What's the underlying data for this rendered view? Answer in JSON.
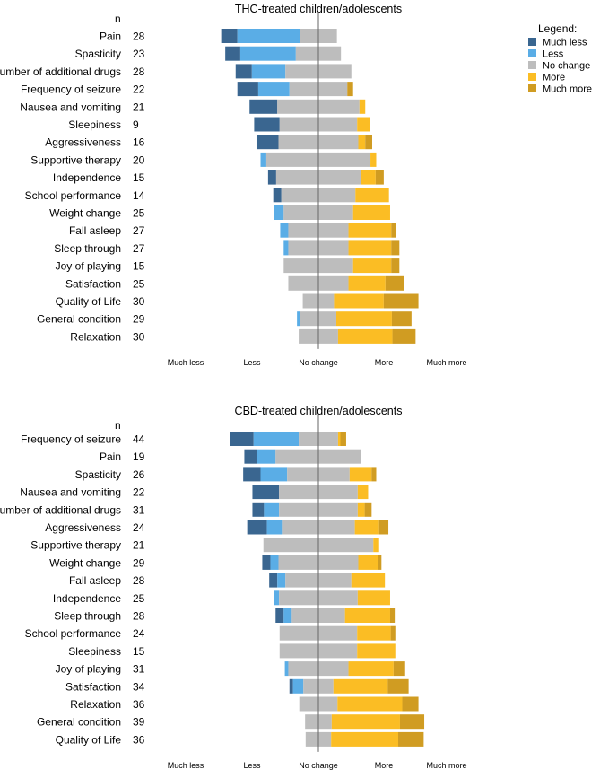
{
  "chart_data": [
    {
      "type": "bar",
      "subtype": "diverging-stacked-horizontal",
      "title": "THC-treated children/adolescents",
      "n_header": "n",
      "xtick_labels": [
        "Much less",
        "Less",
        "No change",
        "More",
        "Much more"
      ],
      "series": [
        {
          "name": "Much less",
          "color": "#3a6690"
        },
        {
          "name": "Less",
          "color": "#5aade6"
        },
        {
          "name": "No change",
          "color": "#bdbdbd"
        },
        {
          "name": "More",
          "color": "#fbbd24"
        },
        {
          "name": "Much more",
          "color": "#d09c22"
        }
      ],
      "categories": [
        {
          "label": "Pain",
          "n": "28",
          "values": [
            14,
            54,
            32,
            0,
            0
          ]
        },
        {
          "label": "Spasticity",
          "n": "23",
          "values": [
            13,
            48,
            39,
            0,
            0
          ]
        },
        {
          "label": "Number of additional drugs",
          "n": "28",
          "values": [
            14,
            29,
            57,
            0,
            0
          ]
        },
        {
          "label": "Frequency of seizure",
          "n": "22",
          "values": [
            18,
            27,
            50,
            0,
            5
          ]
        },
        {
          "label": "Nausea and vomiting",
          "n": "21",
          "values": [
            24,
            0,
            71,
            5,
            0
          ]
        },
        {
          "label": "Sleepiness",
          "n": "9",
          "values": [
            22,
            0,
            67,
            11,
            0
          ]
        },
        {
          "label": "Aggressiveness",
          "n": "16",
          "values": [
            19,
            0,
            69,
            6,
            6
          ]
        },
        {
          "label": "Supportive therapy",
          "n": "20",
          "values": [
            0,
            5,
            90,
            5,
            0
          ]
        },
        {
          "label": "Independence",
          "n": "15",
          "values": [
            7,
            0,
            73,
            13,
            7
          ]
        },
        {
          "label": "School performance",
          "n": "14",
          "values": [
            7,
            0,
            64,
            29,
            0
          ]
        },
        {
          "label": "Weight change",
          "n": "25",
          "values": [
            0,
            8,
            60,
            32,
            0
          ]
        },
        {
          "label": "Fall asleep",
          "n": "27",
          "values": [
            0,
            7,
            52,
            37,
            4
          ]
        },
        {
          "label": "Sleep through",
          "n": "27",
          "values": [
            0,
            4,
            52,
            37,
            7
          ]
        },
        {
          "label": "Joy of playing",
          "n": "15",
          "values": [
            0,
            0,
            60,
            33,
            7
          ]
        },
        {
          "label": "Satisfaction",
          "n": "25",
          "values": [
            0,
            0,
            52,
            32,
            16
          ]
        },
        {
          "label": "Quality of Life",
          "n": "30",
          "values": [
            0,
            0,
            27,
            43,
            30
          ]
        },
        {
          "label": "General condition",
          "n": "29",
          "values": [
            0,
            3,
            31,
            48,
            17
          ]
        },
        {
          "label": "Relaxation",
          "n": "30",
          "values": [
            0,
            0,
            34,
            47,
            20
          ]
        }
      ]
    },
    {
      "type": "bar",
      "subtype": "diverging-stacked-horizontal",
      "title": "CBD-treated children/adolescents",
      "n_header": "n",
      "xtick_labels": [
        "Much less",
        "Less",
        "No change",
        "More",
        "Much more"
      ],
      "series": [
        {
          "name": "Much less",
          "color": "#3a6690"
        },
        {
          "name": "Less",
          "color": "#5aade6"
        },
        {
          "name": "No change",
          "color": "#bdbdbd"
        },
        {
          "name": "More",
          "color": "#fbbd24"
        },
        {
          "name": "Much more",
          "color": "#d09c22"
        }
      ],
      "categories": [
        {
          "label": "Frequency of seizure",
          "n": "44",
          "values": [
            20,
            39,
            34,
            2,
            5
          ]
        },
        {
          "label": "Pain",
          "n": "19",
          "values": [
            11,
            16,
            74,
            0,
            0
          ]
        },
        {
          "label": "Spasticity",
          "n": "26",
          "values": [
            15,
            23,
            54,
            19,
            4
          ]
        },
        {
          "label": "Nausea and vomiting",
          "n": "22",
          "values": [
            23,
            0,
            68,
            9,
            0
          ]
        },
        {
          "label": "Number of additional drugs",
          "n": "31",
          "values": [
            10,
            13,
            68,
            6,
            6
          ]
        },
        {
          "label": "Aggressiveness",
          "n": "24",
          "values": [
            17,
            13,
            63,
            21,
            8
          ]
        },
        {
          "label": "Supportive therapy",
          "n": "21",
          "values": [
            0,
            0,
            95,
            5,
            0
          ]
        },
        {
          "label": "Weight change",
          "n": "29",
          "values": [
            7,
            7,
            69,
            17,
            3
          ]
        },
        {
          "label": "Fall asleep",
          "n": "28",
          "values": [
            7,
            7,
            57,
            29,
            0
          ]
        },
        {
          "label": "Independence",
          "n": "25",
          "values": [
            0,
            4,
            68,
            28,
            0
          ]
        },
        {
          "label": "Sleep through",
          "n": "28",
          "values": [
            7,
            7,
            46,
            39,
            4
          ]
        },
        {
          "label": "School performance",
          "n": "24",
          "values": [
            0,
            0,
            67,
            29,
            4
          ]
        },
        {
          "label": "Sleepiness",
          "n": "15",
          "values": [
            0,
            0,
            67,
            33,
            0
          ]
        },
        {
          "label": "Joy of playing",
          "n": "31",
          "values": [
            0,
            3,
            52,
            39,
            10
          ]
        },
        {
          "label": "Satisfaction",
          "n": "34",
          "values": [
            3,
            9,
            26,
            47,
            18
          ]
        },
        {
          "label": "Relaxation",
          "n": "36",
          "values": [
            0,
            0,
            33,
            56,
            14
          ]
        },
        {
          "label": "General condition",
          "n": "39",
          "values": [
            0,
            0,
            23,
            59,
            21
          ]
        },
        {
          "label": "Quality of Life",
          "n": "36",
          "values": [
            0,
            0,
            22,
            58,
            22
          ]
        }
      ]
    }
  ],
  "legend": {
    "title": "Legend:",
    "placement": "top-right",
    "items": [
      {
        "label": "Much less",
        "color": "#3a6690"
      },
      {
        "label": "Less",
        "color": "#5aade6"
      },
      {
        "label": "No change",
        "color": "#bdbdbd"
      },
      {
        "label": "More",
        "color": "#fbbd24"
      },
      {
        "label": "Much more",
        "color": "#d09c22"
      }
    ]
  }
}
